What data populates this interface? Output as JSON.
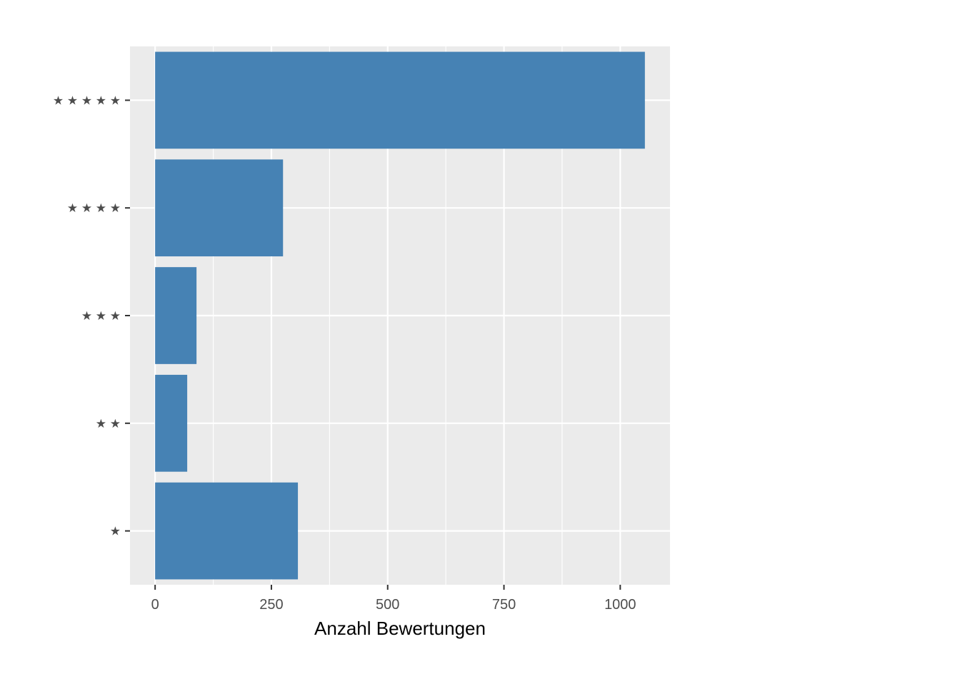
{
  "chart_data": {
    "type": "bar",
    "orientation": "horizontal",
    "categories": [
      "★ ★ ★ ★ ★",
      "★ ★ ★ ★",
      "★ ★ ★",
      "★ ★",
      "★"
    ],
    "values": [
      1053,
      275,
      89,
      69,
      307
    ],
    "title": "",
    "xlabel": "Anzahl Bewertungen",
    "ylabel": "",
    "xlim": [
      -54,
      1107
    ],
    "xticks": [
      0,
      250,
      500,
      750,
      1000
    ],
    "xtick_labels": [
      "0",
      "250",
      "500",
      "750",
      "1000"
    ],
    "grid": true,
    "legend": "none",
    "colors": {
      "bar": "#4682b4",
      "panel_background": "#ebebeb",
      "grid": "#ffffff",
      "tick_text": "#4d4d4d",
      "axis_title": "#000000"
    }
  }
}
